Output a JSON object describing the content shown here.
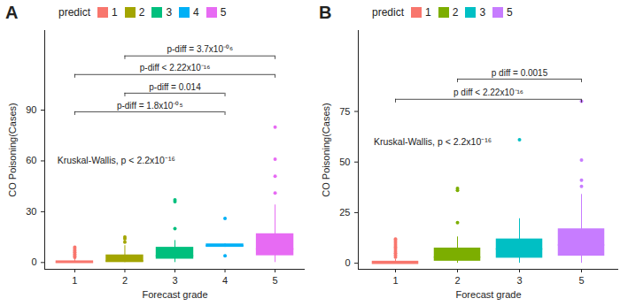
{
  "chart_data": [
    {
      "type": "box",
      "panel": "A",
      "legend_title": "predict",
      "x_label": "Forecast grade",
      "y_label": "CO Poisoning(Cases)",
      "categories": [
        "1",
        "2",
        "3",
        "4",
        "5"
      ],
      "colors": [
        "#F8766D",
        "#A3A500",
        "#00BF7D",
        "#00B0F6",
        "#E76BF3"
      ],
      "boxes": [
        {
          "whisker_low": 0,
          "q1": 0,
          "median": 0,
          "q3": 1,
          "whisker_high": 2,
          "outliers": [
            3,
            4,
            5,
            6,
            7,
            8,
            9
          ]
        },
        {
          "whisker_low": 0,
          "q1": 0,
          "median": 1,
          "q3": 4.5,
          "whisker_high": 10,
          "outliers": [
            12,
            14,
            15
          ]
        },
        {
          "whisker_low": 0,
          "q1": 2,
          "median": 4,
          "q3": 9,
          "whisker_high": 13,
          "outliers": [
            20,
            36,
            37
          ]
        },
        {
          "whisker_low": 9,
          "q1": 9,
          "median": 10,
          "q3": 11,
          "whisker_high": 11,
          "outliers": [
            4,
            26
          ]
        },
        {
          "whisker_low": 0,
          "q1": 4,
          "median": 8,
          "q3": 17,
          "whisker_high": 34,
          "outliers": [
            41,
            51,
            61,
            80
          ]
        }
      ],
      "ylim": [
        -4,
        137
      ],
      "yticks": [
        0,
        30,
        60,
        90
      ],
      "comparisons": [
        {
          "from": "2",
          "to": "5",
          "y": 122,
          "label": "p-diff = 3.7x10⁻⁰⁶"
        },
        {
          "from": "1",
          "to": "5",
          "y": 111,
          "label": "p-diff < 2.22x10⁻¹⁶"
        },
        {
          "from": "2",
          "to": "4",
          "y": 100,
          "label": "p-diff = 0.014"
        },
        {
          "from": "1",
          "to": "4",
          "y": 89,
          "label": "p-diff = 1.8x10⁻⁰⁵"
        }
      ],
      "annotation": {
        "text": "Kruskal-Wallis, p < 2.2x10⁻¹⁶",
        "y": 60
      }
    },
    {
      "type": "box",
      "panel": "B",
      "legend_title": "predict",
      "x_label": "Forecast grade",
      "y_label": "CO Poisoning(Cases)",
      "categories": [
        "1",
        "2",
        "3",
        "5"
      ],
      "colors": [
        "#F8766D",
        "#7CAE00",
        "#00BFC4",
        "#C77CFF"
      ],
      "boxes": [
        {
          "whisker_low": 0,
          "q1": 0,
          "median": 0,
          "q3": 1,
          "whisker_high": 2,
          "outliers": [
            3,
            4,
            5,
            6,
            7,
            8,
            9,
            10,
            11,
            12
          ]
        },
        {
          "whisker_low": 0,
          "q1": 1,
          "median": 3,
          "q3": 7.5,
          "whisker_high": 13,
          "outliers": [
            20,
            36,
            37
          ]
        },
        {
          "whisker_low": 0,
          "q1": 2.5,
          "median": 7,
          "q3": 12,
          "whisker_high": 22,
          "outliers": [
            61
          ]
        },
        {
          "whisker_low": 0,
          "q1": 3.5,
          "median": 9,
          "q3": 17,
          "whisker_high": 34,
          "outliers": [
            38,
            41,
            51,
            80
          ]
        }
      ],
      "ylim": [
        -3,
        115
      ],
      "yticks": [
        0,
        25,
        50,
        75
      ],
      "comparisons": [
        {
          "from": "2",
          "to": "5",
          "y": 91,
          "label": "p diff = 0.0015"
        },
        {
          "from": "1",
          "to": "5",
          "y": 81,
          "label": "p diff < 2.22x10⁻¹⁶"
        }
      ],
      "annotation": {
        "text": "Kruskal-Wallis, p < 2.2x10⁻¹⁶",
        "y": 60
      }
    }
  ]
}
